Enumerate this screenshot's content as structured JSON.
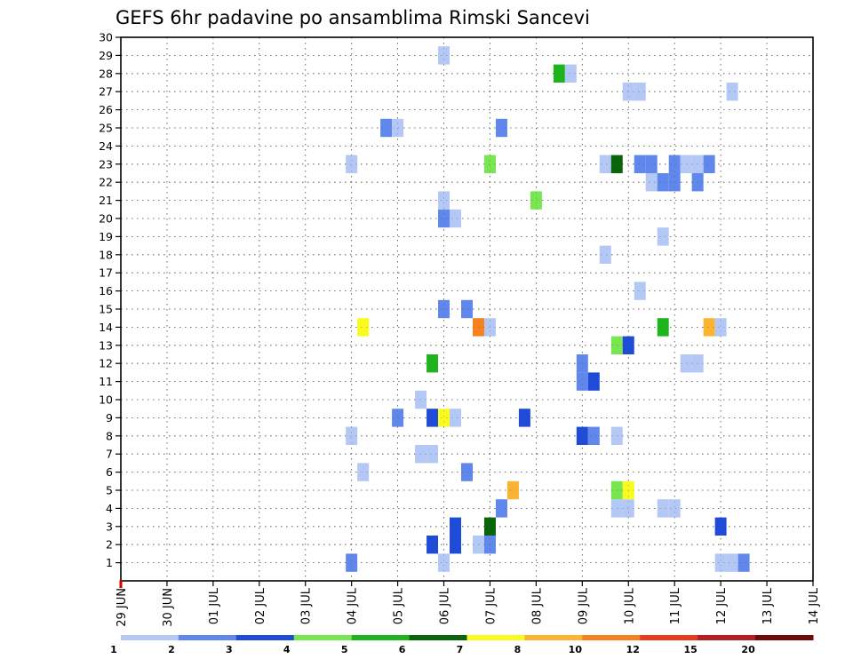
{
  "chart_data": {
    "type": "heatmap",
    "title": "GEFS 6hr padavine po ansamblima Rimski Sancevi",
    "x_labels": [
      "29 JUN",
      "30 JUN",
      "01 JUL",
      "02 JUL",
      "03 JUL",
      "04 JUL",
      "05 JUL",
      "06 JUL",
      "07 JUL",
      "08 JUL",
      "09 JUL",
      "10 JUL",
      "11 JUL",
      "12 JUL",
      "13 JUL",
      "14 JUL"
    ],
    "y_labels": [
      "1",
      "2",
      "3",
      "4",
      "5",
      "6",
      "7",
      "8",
      "9",
      "10",
      "11",
      "12",
      "13",
      "14",
      "15",
      "16",
      "17",
      "18",
      "19",
      "20",
      "21",
      "22",
      "23",
      "24",
      "25",
      "26",
      "27",
      "28",
      "29",
      "30"
    ],
    "x_range_days": [
      0,
      15
    ],
    "y_range": [
      0,
      30
    ],
    "grid": true,
    "legend_position": "bottom",
    "colorbar": {
      "labels": [
        "1",
        "2",
        "3",
        "4",
        "5",
        "6",
        "7",
        "8",
        "10",
        "12",
        "15",
        "20"
      ],
      "colors": [
        "#b4c8f5",
        "#5f87ec",
        "#1e4bd8",
        "#78e650",
        "#1eb41e",
        "#0a640a",
        "#fafa1e",
        "#fab432",
        "#f5821e",
        "#e63c1e",
        "#b41e1e",
        "#6e0a0a"
      ]
    },
    "cells": [
      {
        "member": 1,
        "day": 5.0,
        "cat": 1
      },
      {
        "member": 1,
        "day": 7.0,
        "cat": 0
      },
      {
        "member": 1,
        "day": 13.0,
        "cat": 0
      },
      {
        "member": 1,
        "day": 13.25,
        "cat": 0
      },
      {
        "member": 1,
        "day": 13.5,
        "cat": 1
      },
      {
        "member": 2,
        "day": 6.75,
        "cat": 2
      },
      {
        "member": 2,
        "day": 7.25,
        "cat": 2
      },
      {
        "member": 2,
        "day": 7.75,
        "cat": 0
      },
      {
        "member": 2,
        "day": 8.0,
        "cat": 1
      },
      {
        "member": 3,
        "day": 7.25,
        "cat": 2
      },
      {
        "member": 3,
        "day": 8.0,
        "cat": 5
      },
      {
        "member": 3,
        "day": 13.0,
        "cat": 2
      },
      {
        "member": 4,
        "day": 8.25,
        "cat": 1
      },
      {
        "member": 4,
        "day": 10.75,
        "cat": 0
      },
      {
        "member": 4,
        "day": 11.0,
        "cat": 0
      },
      {
        "member": 4,
        "day": 11.75,
        "cat": 0
      },
      {
        "member": 4,
        "day": 12.0,
        "cat": 0
      },
      {
        "member": 5,
        "day": 8.5,
        "cat": 7
      },
      {
        "member": 5,
        "day": 10.75,
        "cat": 3
      },
      {
        "member": 5,
        "day": 11.0,
        "cat": 6
      },
      {
        "member": 6,
        "day": 5.25,
        "cat": 0
      },
      {
        "member": 6,
        "day": 7.5,
        "cat": 1
      },
      {
        "member": 7,
        "day": 6.5,
        "cat": 0
      },
      {
        "member": 7,
        "day": 6.75,
        "cat": 0
      },
      {
        "member": 8,
        "day": 5.0,
        "cat": 0
      },
      {
        "member": 8,
        "day": 10.0,
        "cat": 2
      },
      {
        "member": 8,
        "day": 10.25,
        "cat": 1
      },
      {
        "member": 8,
        "day": 10.75,
        "cat": 0
      },
      {
        "member": 9,
        "day": 6.0,
        "cat": 1
      },
      {
        "member": 9,
        "day": 6.75,
        "cat": 2
      },
      {
        "member": 9,
        "day": 7.0,
        "cat": 6
      },
      {
        "member": 9,
        "day": 7.25,
        "cat": 0
      },
      {
        "member": 9,
        "day": 8.75,
        "cat": 2
      },
      {
        "member": 10,
        "day": 6.5,
        "cat": 0
      },
      {
        "member": 11,
        "day": 10.0,
        "cat": 1
      },
      {
        "member": 11,
        "day": 10.25,
        "cat": 2
      },
      {
        "member": 12,
        "day": 6.75,
        "cat": 4
      },
      {
        "member": 12,
        "day": 10.0,
        "cat": 1
      },
      {
        "member": 12,
        "day": 12.25,
        "cat": 0
      },
      {
        "member": 12,
        "day": 12.5,
        "cat": 0
      },
      {
        "member": 13,
        "day": 10.75,
        "cat": 3
      },
      {
        "member": 13,
        "day": 11.0,
        "cat": 2
      },
      {
        "member": 14,
        "day": 5.25,
        "cat": 6
      },
      {
        "member": 14,
        "day": 7.75,
        "cat": 8
      },
      {
        "member": 14,
        "day": 8.0,
        "cat": 0
      },
      {
        "member": 14,
        "day": 11.75,
        "cat": 4
      },
      {
        "member": 14,
        "day": 12.75,
        "cat": 7
      },
      {
        "member": 14,
        "day": 13.0,
        "cat": 0
      },
      {
        "member": 15,
        "day": 7.0,
        "cat": 1
      },
      {
        "member": 15,
        "day": 7.5,
        "cat": 1
      },
      {
        "member": 16,
        "day": 11.25,
        "cat": 0
      },
      {
        "member": 18,
        "day": 10.5,
        "cat": 0
      },
      {
        "member": 19,
        "day": 11.75,
        "cat": 0
      },
      {
        "member": 20,
        "day": 7.0,
        "cat": 1
      },
      {
        "member": 20,
        "day": 7.25,
        "cat": 0
      },
      {
        "member": 21,
        "day": 7.0,
        "cat": 0
      },
      {
        "member": 21,
        "day": 9.0,
        "cat": 3
      },
      {
        "member": 22,
        "day": 11.5,
        "cat": 0
      },
      {
        "member": 22,
        "day": 11.75,
        "cat": 1
      },
      {
        "member": 22,
        "day": 12.0,
        "cat": 1
      },
      {
        "member": 22,
        "day": 12.5,
        "cat": 1
      },
      {
        "member": 23,
        "day": 5.0,
        "cat": 0
      },
      {
        "member": 23,
        "day": 8.0,
        "cat": 3
      },
      {
        "member": 23,
        "day": 10.5,
        "cat": 0
      },
      {
        "member": 23,
        "day": 10.75,
        "cat": 5
      },
      {
        "member": 23,
        "day": 11.25,
        "cat": 1
      },
      {
        "member": 23,
        "day": 11.5,
        "cat": 1
      },
      {
        "member": 23,
        "day": 12.0,
        "cat": 1
      },
      {
        "member": 23,
        "day": 12.25,
        "cat": 0
      },
      {
        "member": 23,
        "day": 12.5,
        "cat": 0
      },
      {
        "member": 23,
        "day": 12.75,
        "cat": 1
      },
      {
        "member": 25,
        "day": 5.75,
        "cat": 1
      },
      {
        "member": 25,
        "day": 6.0,
        "cat": 0
      },
      {
        "member": 25,
        "day": 8.25,
        "cat": 1
      },
      {
        "member": 27,
        "day": 11.0,
        "cat": 0
      },
      {
        "member": 27,
        "day": 11.25,
        "cat": 0
      },
      {
        "member": 27,
        "day": 13.25,
        "cat": 0
      },
      {
        "member": 28,
        "day": 9.5,
        "cat": 4
      },
      {
        "member": 28,
        "day": 9.75,
        "cat": 0
      },
      {
        "member": 29,
        "day": 7.0,
        "cat": 0
      }
    ]
  }
}
